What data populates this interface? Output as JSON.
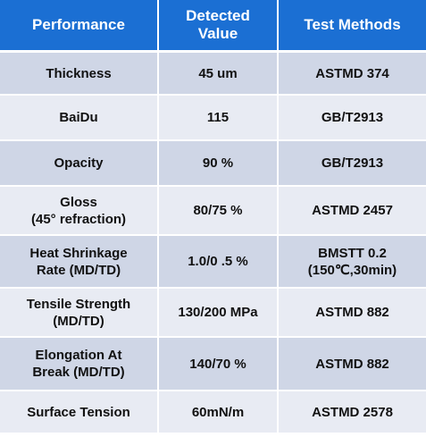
{
  "table": {
    "headers": {
      "performance": "Performance",
      "detected_value_line1": "Detected",
      "detected_value_line2": "Value",
      "test_methods": "Test Methods"
    },
    "rows": [
      {
        "performance": [
          "Thickness"
        ],
        "value": [
          "45 um"
        ],
        "method": [
          "ASTMD 374"
        ]
      },
      {
        "performance": [
          "BaiDu"
        ],
        "value": [
          "115"
        ],
        "method": [
          "GB/T2913"
        ]
      },
      {
        "performance": [
          "Opacity"
        ],
        "value": [
          "90 %"
        ],
        "method": [
          "GB/T2913"
        ]
      },
      {
        "performance": [
          "Gloss",
          "(45° refraction)"
        ],
        "value": [
          "80/75 %"
        ],
        "method": [
          "ASTMD 2457"
        ]
      },
      {
        "performance": [
          "Heat Shrinkage",
          "Rate (MD/TD)"
        ],
        "value": [
          "1.0/0 .5 %"
        ],
        "method": [
          "BMSTT 0.2",
          "(150℃,30min)"
        ]
      },
      {
        "performance": [
          "Tensile Strength",
          "(MD/TD)"
        ],
        "value": [
          "130/200 MPa"
        ],
        "method": [
          "ASTMD 882"
        ]
      },
      {
        "performance": [
          "Elongation At",
          "Break (MD/TD)"
        ],
        "value": [
          "140/70 %"
        ],
        "method": [
          "ASTMD 882"
        ]
      },
      {
        "performance": [
          "Surface Tension"
        ],
        "value": [
          "60mN/m"
        ],
        "method": [
          "ASTMD 2578"
        ]
      }
    ]
  },
  "colors": {
    "header_bg": "#1b6fd3",
    "header_text": "#ffffff",
    "row_odd_bg": "#cfd6e6",
    "row_even_bg": "#e8ebf3",
    "body_text": "#111111"
  }
}
